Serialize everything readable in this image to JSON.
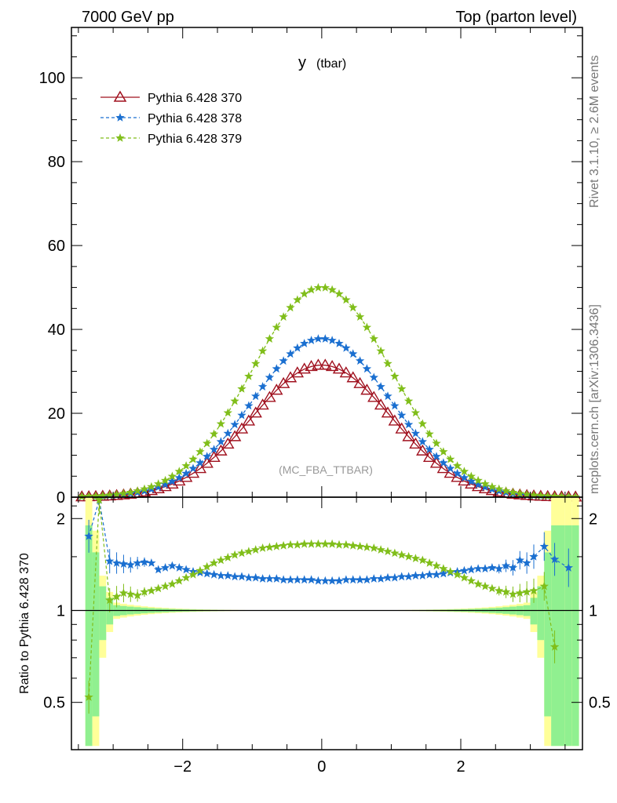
{
  "header": {
    "left_title": "7000 GeV pp",
    "right_title": "Top (parton level)"
  },
  "side_labels": {
    "rivet": "Rivet 3.1.10, ≥ 2.6M events",
    "source": "mcplots.cern.ch [arXiv:1306.3436]"
  },
  "plot_label": "y",
  "plot_label_sub": "(tbar)",
  "analysis_label": "(MC_FBA_TTBAR)",
  "ratio_ylabel": "Ratio to Pythia 6.428 370",
  "colors": {
    "s370": "#a0101e",
    "s378": "#1a6fd0",
    "s379": "#80be1a",
    "band_inner": "#90f090",
    "band_outer": "#ffff99"
  },
  "chart_data": [
    {
      "type": "line",
      "xlim": [
        -3.6,
        3.75
      ],
      "ylim": [
        0,
        112
      ],
      "yticks": [
        0,
        20,
        40,
        60,
        80,
        100
      ],
      "ytick_labels": [
        "0",
        "20",
        "40",
        "60",
        "80",
        "100"
      ],
      "series": [
        {
          "name": "Pythia 6.428 370",
          "color": "#a0101e",
          "marker": "open-triangle",
          "peak": 31.5,
          "width": 1.0
        },
        {
          "name": "Pythia 6.428 378",
          "color": "#1a6fd0",
          "marker": "star",
          "peak": 37.8,
          "width": 1.0
        },
        {
          "name": "Pythia 6.428 379",
          "color": "#80be1a",
          "marker": "star",
          "peak": 50.0,
          "width": 1.0
        }
      ]
    },
    {
      "type": "line",
      "xlim": [
        -3.6,
        3.75
      ],
      "ylim": [
        0.35,
        2.35
      ],
      "log_y": true,
      "yticks": [
        0.5,
        1,
        2
      ],
      "ytick_labels": [
        "0.5",
        "1",
        "2"
      ],
      "xticks": [
        -2,
        0,
        2
      ],
      "xtick_labels": [
        "−2",
        "0",
        "2"
      ],
      "series": [
        {
          "name": "Pythia 6.428 378",
          "color": "#1a6fd0",
          "x": [
            -3.35,
            -3.2,
            -3.05,
            -2.95,
            -2.85,
            -2.75,
            -2.65,
            -2.55,
            -2.45,
            -2.35,
            -2.25,
            -2.15,
            -2.05,
            -1.95,
            -1.85,
            -1.75,
            -1.65,
            -1.55,
            -1.45,
            -1.35,
            -1.25,
            -1.15,
            -1.05,
            -0.95,
            -0.85,
            -0.75,
            -0.65,
            -0.55,
            -0.45,
            -0.35,
            -0.25,
            -0.15,
            -0.05,
            0.05,
            0.15,
            0.25,
            0.35,
            0.45,
            0.55,
            0.65,
            0.75,
            0.85,
            0.95,
            1.05,
            1.15,
            1.25,
            1.35,
            1.45,
            1.55,
            1.65,
            1.75,
            1.85,
            1.95,
            2.05,
            2.15,
            2.25,
            2.35,
            2.45,
            2.55,
            2.65,
            2.75,
            2.85,
            2.95,
            3.05,
            3.2,
            3.35,
            3.55
          ],
          "y": [
            1.75,
            2.3,
            1.45,
            1.43,
            1.42,
            1.41,
            1.43,
            1.44,
            1.43,
            1.36,
            1.38,
            1.4,
            1.38,
            1.36,
            1.34,
            1.33,
            1.32,
            1.31,
            1.3,
            1.3,
            1.29,
            1.29,
            1.28,
            1.28,
            1.27,
            1.27,
            1.27,
            1.26,
            1.26,
            1.26,
            1.26,
            1.26,
            1.25,
            1.25,
            1.25,
            1.25,
            1.26,
            1.26,
            1.26,
            1.26,
            1.27,
            1.27,
            1.28,
            1.28,
            1.29,
            1.29,
            1.3,
            1.3,
            1.31,
            1.31,
            1.32,
            1.33,
            1.34,
            1.35,
            1.36,
            1.37,
            1.37,
            1.38,
            1.37,
            1.4,
            1.38,
            1.46,
            1.43,
            1.5,
            1.62,
            1.47,
            1.38
          ]
        },
        {
          "name": "Pythia 6.428 379",
          "color": "#80be1a",
          "x": [
            -3.35,
            -3.2,
            -3.05,
            -2.95,
            -2.85,
            -2.75,
            -2.65,
            -2.55,
            -2.45,
            -2.35,
            -2.25,
            -2.15,
            -2.05,
            -1.95,
            -1.85,
            -1.75,
            -1.65,
            -1.55,
            -1.45,
            -1.35,
            -1.25,
            -1.15,
            -1.05,
            -0.95,
            -0.85,
            -0.75,
            -0.65,
            -0.55,
            -0.45,
            -0.35,
            -0.25,
            -0.15,
            -0.05,
            0.05,
            0.15,
            0.25,
            0.35,
            0.45,
            0.55,
            0.65,
            0.75,
            0.85,
            0.95,
            1.05,
            1.15,
            1.25,
            1.35,
            1.45,
            1.55,
            1.65,
            1.75,
            1.85,
            1.95,
            2.05,
            2.15,
            2.25,
            2.35,
            2.45,
            2.55,
            2.65,
            2.75,
            2.85,
            2.95,
            3.05,
            3.2,
            3.35
          ],
          "y": [
            0.52,
            2.3,
            1.08,
            1.11,
            1.14,
            1.13,
            1.12,
            1.15,
            1.16,
            1.18,
            1.2,
            1.22,
            1.25,
            1.28,
            1.31,
            1.35,
            1.39,
            1.43,
            1.46,
            1.49,
            1.52,
            1.54,
            1.56,
            1.58,
            1.6,
            1.61,
            1.62,
            1.63,
            1.64,
            1.64,
            1.65,
            1.65,
            1.65,
            1.65,
            1.65,
            1.64,
            1.64,
            1.63,
            1.62,
            1.61,
            1.6,
            1.58,
            1.56,
            1.54,
            1.52,
            1.5,
            1.48,
            1.46,
            1.43,
            1.4,
            1.37,
            1.34,
            1.31,
            1.28,
            1.25,
            1.22,
            1.2,
            1.18,
            1.16,
            1.15,
            1.13,
            1.14,
            1.15,
            1.16,
            1.2,
            0.76
          ]
        }
      ]
    }
  ]
}
